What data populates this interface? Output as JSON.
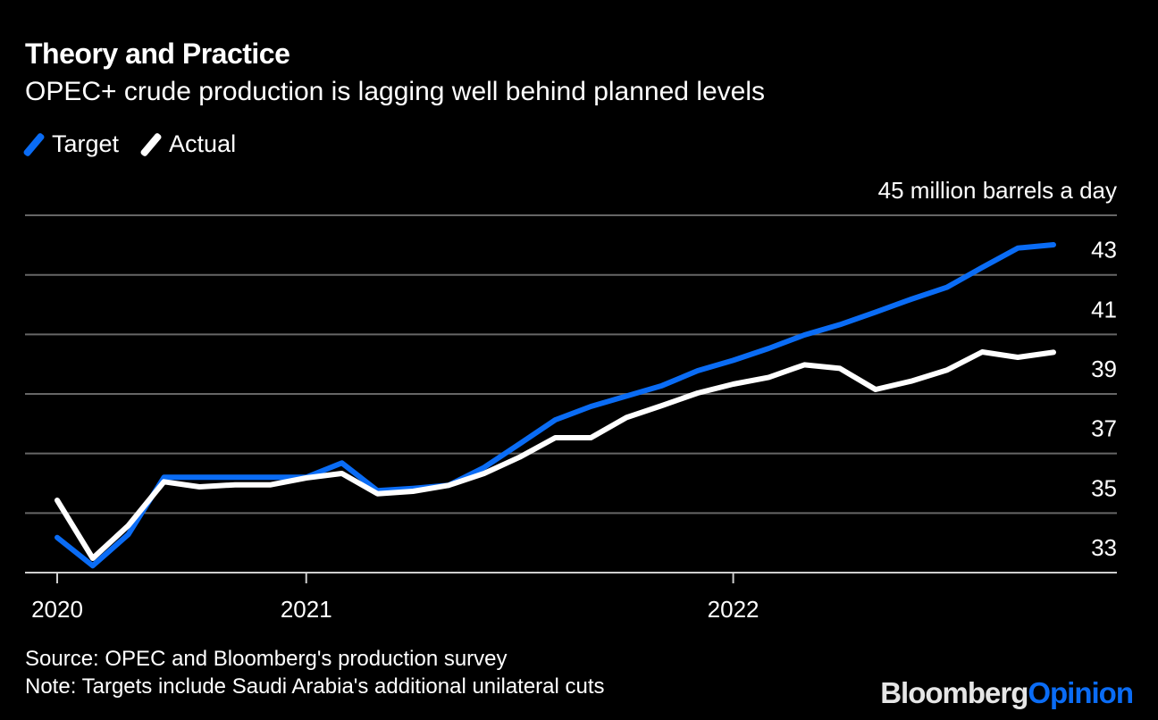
{
  "header": {
    "title": "Theory and Practice",
    "subtitle": "OPEC+ crude production is lagging well behind planned levels"
  },
  "footer": {
    "source": "Source: OPEC and Bloomberg's production survey",
    "note": "Note: Targets include Saudi Arabia's additional unilateral cuts"
  },
  "brand": {
    "part1": "Bloomberg",
    "part2": "Opinion",
    "part2_color": "#0a6cf5"
  },
  "chart_data": {
    "type": "line",
    "title": "Theory and Practice",
    "subtitle": "OPEC+ crude production is lagging well behind planned levels",
    "ylabel": "45 million barrels a day",
    "ylim": [
      33,
      45
    ],
    "yticks": [
      33,
      35,
      37,
      39,
      41,
      43,
      45
    ],
    "ytick_labels": [
      "33",
      "35",
      "37",
      "39",
      "41",
      "43",
      "45 million barrels a day"
    ],
    "xticks": [
      {
        "date": "2020-06",
        "label": "2020"
      },
      {
        "date": "2021-01",
        "label": "2021"
      },
      {
        "date": "2022-01",
        "label": "2022"
      }
    ],
    "grid": true,
    "legend_position": "top-left",
    "x": [
      "2020-06",
      "2020-07",
      "2020-08",
      "2020-09",
      "2020-10",
      "2020-11",
      "2020-12",
      "2021-01",
      "2021-02",
      "2021-03",
      "2021-04",
      "2021-05",
      "2021-06",
      "2021-07",
      "2021-08",
      "2021-09",
      "2021-10",
      "2021-11",
      "2021-12",
      "2022-01",
      "2022-02",
      "2022-03",
      "2022-04",
      "2022-05",
      "2022-06",
      "2022-07",
      "2022-08",
      "2022-09",
      "2022-10"
    ],
    "series": [
      {
        "name": "Target",
        "color": "#0a6cf5",
        "values": [
          34.18,
          33.23,
          34.28,
          36.2,
          36.2,
          36.2,
          36.2,
          36.2,
          36.68,
          35.75,
          35.83,
          35.93,
          36.53,
          37.33,
          38.13,
          38.58,
          38.93,
          39.28,
          39.78,
          40.13,
          40.53,
          40.98,
          41.33,
          41.75,
          42.18,
          42.58,
          43.25,
          43.9,
          44.01
        ]
      },
      {
        "name": "Actual",
        "color": "#ffffff",
        "values": [
          35.43,
          33.48,
          34.58,
          36.05,
          35.88,
          35.95,
          35.95,
          36.18,
          36.33,
          35.65,
          35.73,
          35.93,
          36.33,
          36.88,
          37.53,
          37.53,
          38.21,
          38.61,
          39.03,
          39.33,
          39.56,
          39.98,
          39.86,
          39.15,
          39.43,
          39.8,
          40.41,
          40.23,
          40.4
        ]
      }
    ]
  }
}
